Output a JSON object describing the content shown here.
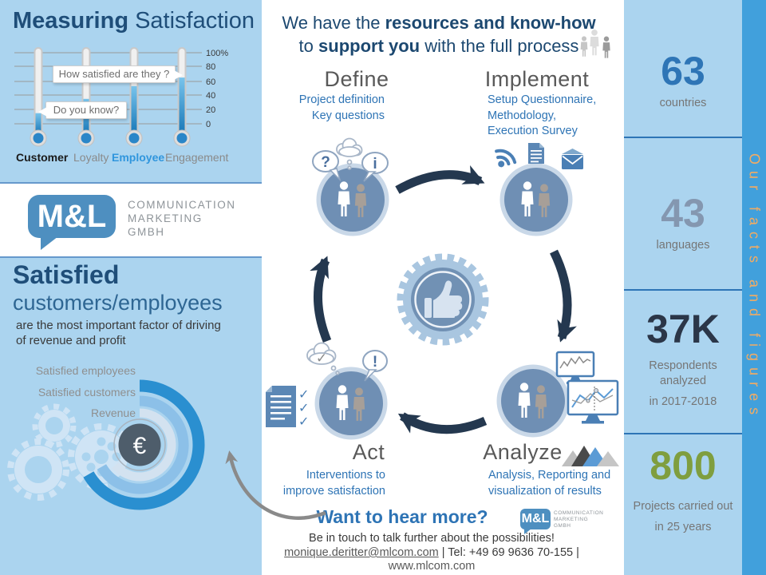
{
  "colors": {
    "panel_blue": "#abd4ef",
    "strip_blue": "#41a0dc",
    "navy": "#1f4e79",
    "accent_blue": "#2e74b5",
    "strip_text": "#f2ab63",
    "circle_steel": "#6f8fb4",
    "arrow_navy": "#24384f"
  },
  "icons": {
    "question": "?",
    "info": "i",
    "exclamation": "!",
    "check": "✓",
    "euro": "€"
  },
  "left_panel": {
    "title_bold": "Measuring",
    "title_rest": " Satisfaction",
    "thermometer_chart": {
      "bubble_top": "How satisfied are they ?",
      "bubble_bottom": "Do you know?",
      "axis_labels": [
        "100%",
        "80",
        "60",
        "40",
        "20",
        "0"
      ],
      "categories": [
        {
          "label": "Customer",
          "value": 15
        },
        {
          "label": "Loyalty",
          "value": 35
        },
        {
          "label": "Employee",
          "value": 53
        },
        {
          "label": "Engagement",
          "value": 65
        }
      ]
    },
    "logo": {
      "mark": "M&L",
      "line1": "COMMUNICATION",
      "line2": "MARKETING",
      "line3": "GMBH"
    },
    "satisfied_bold": "Satisfied",
    "satisfied_rest": "customers/employees",
    "body_line1": "are the most important factor of driving",
    "body_line2": "of revenue and profit",
    "ring_labels": [
      "Satisfied employees",
      "Satisfied customers",
      "Revenue"
    ]
  },
  "center_panel": {
    "header": {
      "l1_pre": "We have the ",
      "l1_bold": "resources and know-how",
      "l2_pre": "to ",
      "l2_bold": "support you",
      "l2_post": " with the full process"
    },
    "steps": {
      "define": {
        "title": "Define",
        "lines": [
          "Project definition",
          "Key questions"
        ]
      },
      "implement": {
        "title": "Implement",
        "lines": [
          "Setup Questionnaire,",
          "Methodology,",
          "Execution Survey"
        ]
      },
      "act": {
        "title": "Act",
        "lines": [
          "Interventions to",
          "improve satisfaction"
        ]
      },
      "analyze": {
        "title": "Analyze",
        "lines": [
          "Analysis, Reporting and",
          "visualization of results"
        ]
      }
    },
    "footer": {
      "cta": "Want to hear more?",
      "logo_mark": "M&L",
      "logo_line1": "COMMUNICATION",
      "logo_line2": "MARKETING",
      "logo_line3": "GMBH",
      "line1": "Be in touch to talk further about the possibilities!",
      "email": "monique.deritter@mlcom.com",
      "contact_rest": " | Tel: +49 69 9636 70-155 |",
      "website": "www.mlcom.com"
    }
  },
  "right_panel": {
    "strip_text": "Our facts and figures",
    "facts": [
      {
        "value": "63",
        "color": "#2e75b6",
        "line1": "countries",
        "line2": "",
        "line3": ""
      },
      {
        "value": "43",
        "color": "#8497b0",
        "line1": "languages",
        "line2": "",
        "line3": ""
      },
      {
        "value": "37K",
        "color": "#2b3648",
        "line1": "Respondents",
        "line2": "analyzed",
        "line3": "in 2017-2018"
      },
      {
        "value": "800",
        "color": "#7f9e3f",
        "line1": "Projects carried out",
        "line2": "",
        "line3": "in 25 years"
      }
    ]
  },
  "chart_data": [
    {
      "type": "bar",
      "note": "thermometer gauges",
      "title": "Measuring Satisfaction",
      "categories": [
        "Customer",
        "Loyalty",
        "Employee",
        "Engagement"
      ],
      "values": [
        15,
        35,
        53,
        65
      ],
      "ylim": [
        0,
        100
      ],
      "yticks": [
        "0",
        "20",
        "40",
        "60",
        "80",
        "100%"
      ],
      "annotations": [
        "Do you know?",
        "How satisfied are they ?"
      ]
    },
    {
      "type": "pie",
      "note": "concentric ring diagram, no numeric values shown",
      "categories": [
        "Satisfied employees",
        "Satisfied customers",
        "Revenue"
      ],
      "center_label": "€"
    }
  ]
}
